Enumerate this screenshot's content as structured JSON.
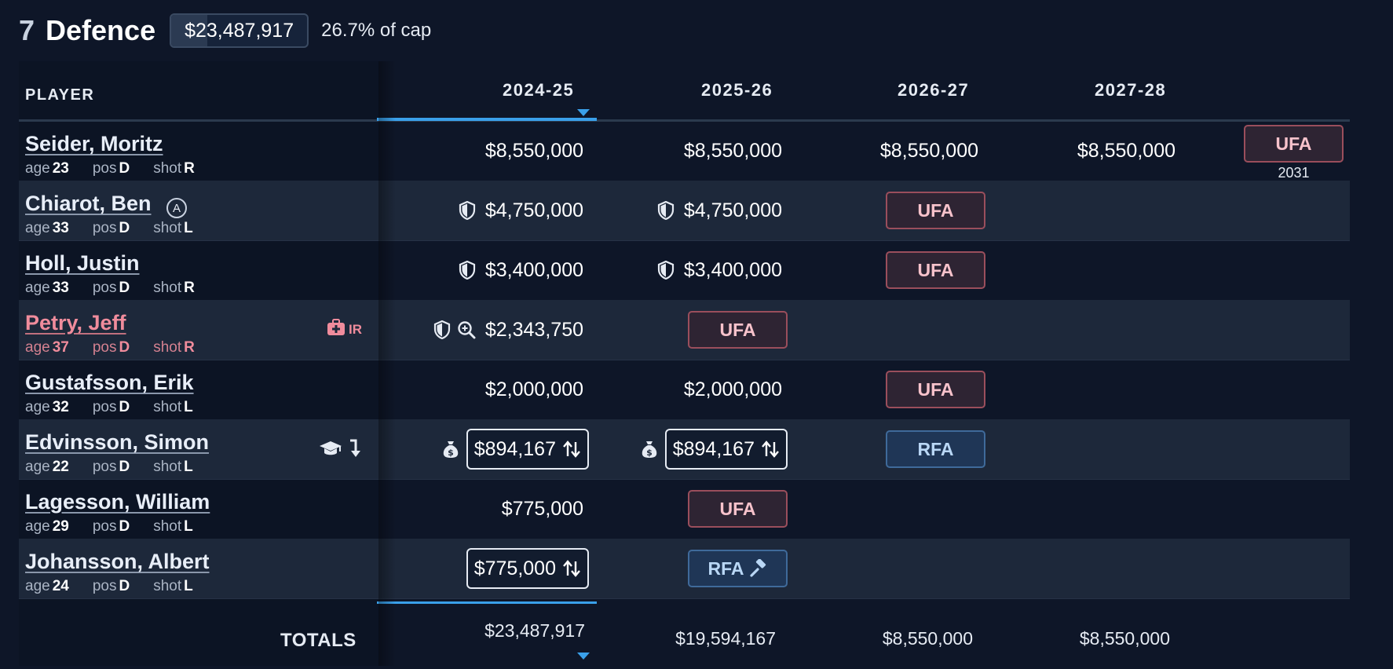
{
  "section": {
    "count": "7",
    "title": "Defence",
    "total": "$23,487,917",
    "cap_pct": "26.7% of cap",
    "cap_fraction": 0.267
  },
  "columns": {
    "player": "PLAYER",
    "seasons": [
      "2024-25",
      "2025-26",
      "2026-27",
      "2027-28"
    ],
    "sorted_season": "2024-25"
  },
  "meta_labels": {
    "age": "age",
    "pos": "pos",
    "shot": "shot"
  },
  "players": [
    {
      "name": "Seider, Moritz",
      "age": "23",
      "pos": "D",
      "shot": "R",
      "y1": "$8,550,000",
      "y2": "$8,550,000",
      "y3": "$8,550,000",
      "y4": "$8,550,000",
      "status": "UFA",
      "expiry": "2031"
    },
    {
      "name": "Chiarot, Ben",
      "age": "33",
      "pos": "D",
      "shot": "L",
      "captain_badge": "A",
      "y1": "$4,750,000",
      "y2": "$4,750,000",
      "status": "UFA"
    },
    {
      "name": "Holl, Justin",
      "age": "33",
      "pos": "D",
      "shot": "R",
      "y1": "$3,400,000",
      "y2": "$3,400,000",
      "status": "UFA"
    },
    {
      "name": "Petry, Jeff",
      "age": "37",
      "pos": "D",
      "shot": "R",
      "ir_label": "IR",
      "y1": "$2,343,750",
      "status": "UFA"
    },
    {
      "name": "Gustafsson, Erik",
      "age": "32",
      "pos": "D",
      "shot": "L",
      "y1": "$2,000,000",
      "y2": "$2,000,000",
      "status": "UFA"
    },
    {
      "name": "Edvinsson, Simon",
      "age": "22",
      "pos": "D",
      "shot": "L",
      "y1": "$894,167",
      "y2": "$894,167",
      "status": "RFA"
    },
    {
      "name": "Lagesson, William",
      "age": "29",
      "pos": "D",
      "shot": "L",
      "y1": "$775,000",
      "status": "UFA"
    },
    {
      "name": "Johansson, Albert",
      "age": "24",
      "pos": "D",
      "shot": "L",
      "y1": "$775,000",
      "status": "RFA"
    }
  ],
  "totals": {
    "label": "TOTALS",
    "values": [
      "$23,487,917",
      "$19,594,167",
      "$8,550,000",
      "$8,550,000"
    ]
  },
  "colors": {
    "background": "#0e1628",
    "accent": "#3aa0ea",
    "ufa": "#9a4e5c",
    "rfa": "#3f6a9a",
    "injured": "#f08c9c"
  }
}
